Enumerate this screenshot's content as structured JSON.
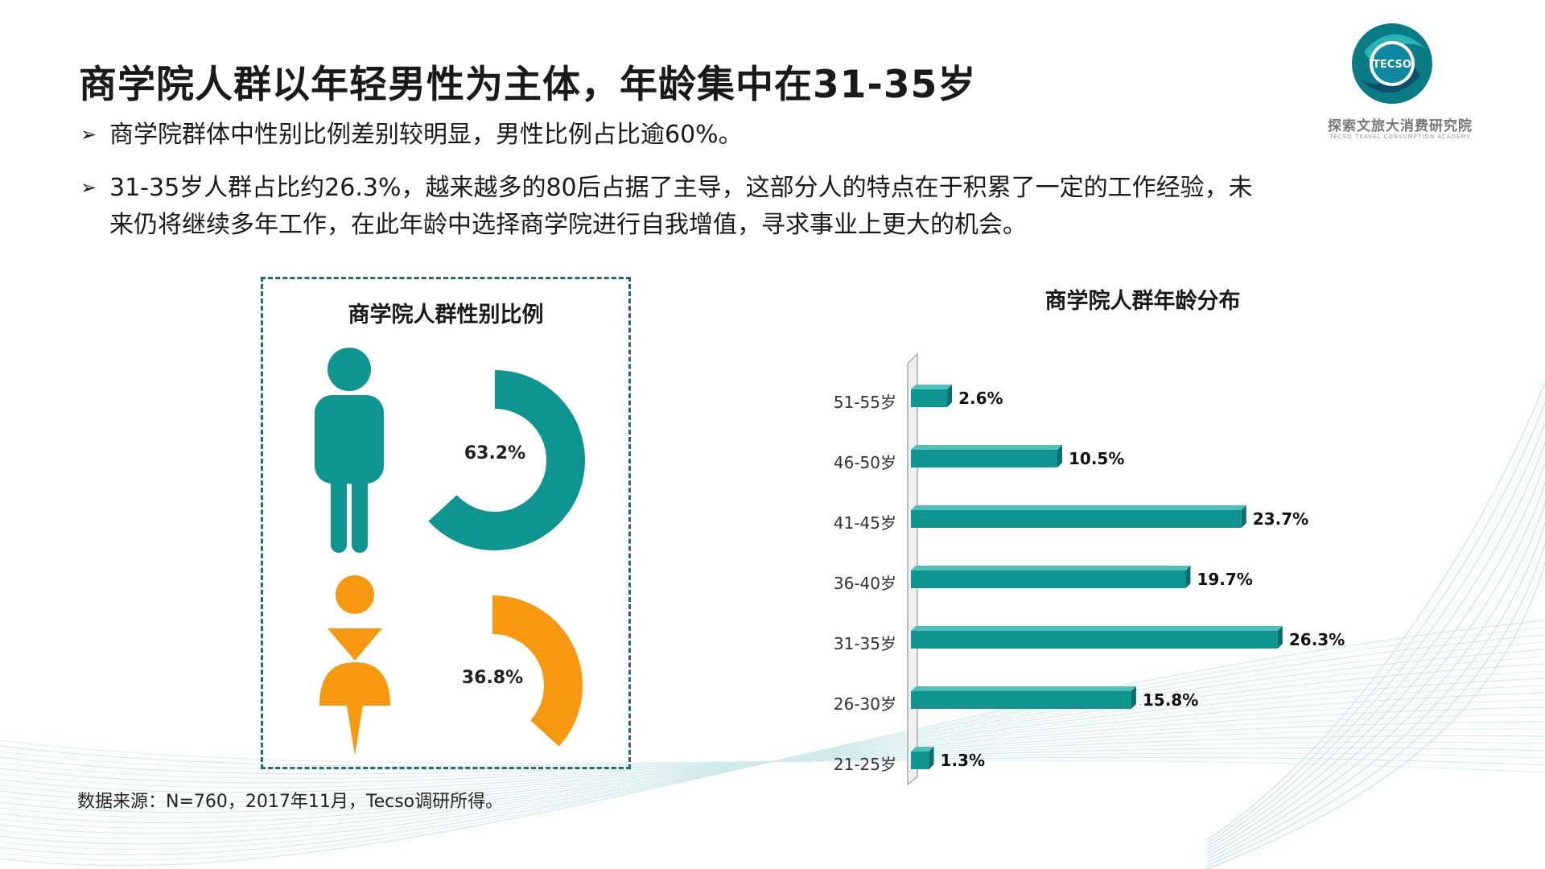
{
  "title": "商学院人群以年轻男性为主体，年龄集中在31-35岁",
  "bullets": [
    {
      "arrow": "➢",
      "lines": [
        "商学院群体中性别比例差别较明显，男性比例占比逾60%。"
      ]
    },
    {
      "arrow": "➢",
      "lines": [
        "31-35岁人群占比约26.3%，越来越多的80后占据了主导，这部分人的特点在于积累了一定的工作经验，未",
        "来仍将继续多年工作，在此年龄中选择商学院进行自我增值，寻求事业上更大的机会。"
      ]
    }
  ],
  "logo": {
    "icon_text": "TECSO",
    "name": "探索文旅大消费研究院",
    "subtitle": "TECSO TRAVEL CONSUMPTION ACADEMY"
  },
  "source": "数据来源：N=760，2017年11月，Tecso调研所得。",
  "colors": {
    "teal": "#0f9590",
    "teal_dark": "#0a6e6a",
    "orange": "#f7980f"
  },
  "chart_data": [
    {
      "type": "pie",
      "title": "商学院人群性别比例",
      "series": [
        {
          "name": "male",
          "icon": "male-figure-icon",
          "value": 63.2,
          "label": "63.2%",
          "color": "#0f9590"
        },
        {
          "name": "female",
          "icon": "female-figure-icon",
          "value": 36.8,
          "label": "36.8%",
          "color": "#f7980f"
        }
      ]
    },
    {
      "type": "bar",
      "orientation": "horizontal",
      "title": "商学院人群年龄分布",
      "categories": [
        "51-55岁",
        "46-50岁",
        "41-45岁",
        "36-40岁",
        "31-35岁",
        "26-30岁",
        "21-25岁"
      ],
      "values": [
        2.6,
        10.5,
        23.7,
        19.7,
        26.3,
        15.8,
        1.3
      ],
      "labels": [
        "2.6%",
        "10.5%",
        "23.7%",
        "19.7%",
        "26.3%",
        "15.8%",
        "1.3%"
      ],
      "xlim": [
        0,
        30
      ]
    }
  ]
}
